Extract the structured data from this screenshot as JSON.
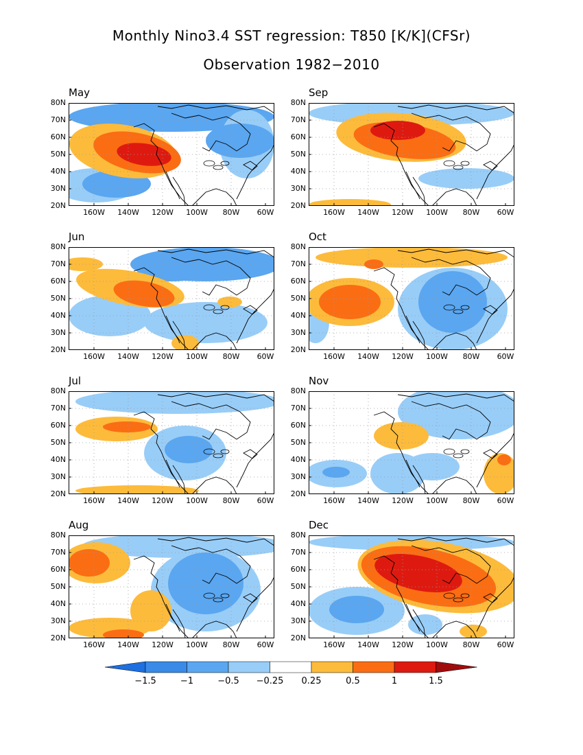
{
  "title": "Monthly Nino3.4 SST regression: T850 [K/K](CFSr)",
  "subtitle": "Observation 1982−2010",
  "lat_labels": [
    "80N",
    "70N",
    "60N",
    "50N",
    "40N",
    "30N",
    "20N"
  ],
  "lon_labels": [
    "160W",
    "140W",
    "120W",
    "100W",
    "80W",
    "60W"
  ],
  "panels": [
    {
      "month": "May"
    },
    {
      "month": "Sep"
    },
    {
      "month": "Jun"
    },
    {
      "month": "Oct"
    },
    {
      "month": "Jul"
    },
    {
      "month": "Nov"
    },
    {
      "month": "Aug"
    },
    {
      "month": "Dec"
    }
  ],
  "colorbar": {
    "labels": [
      "−1.5",
      "−1",
      "−0.5",
      "−0.25",
      "0.25",
      "0.5",
      "1",
      "1.5"
    ],
    "colors": [
      "#1e6fe0",
      "#3a8ae8",
      "#5aa6f0",
      "#98cdf8",
      "#ffffff",
      "#fdbb3b",
      "#fb6d13",
      "#de1a10",
      "#a00c0c"
    ]
  },
  "colors": {
    "neg_strong": "#3a8ae8",
    "neg_mid": "#5aa6f0",
    "neg_weak": "#98cdf8",
    "pos_weak": "#fdbb3b",
    "pos_mid": "#fb6d13",
    "pos_strong": "#de1a10"
  }
}
